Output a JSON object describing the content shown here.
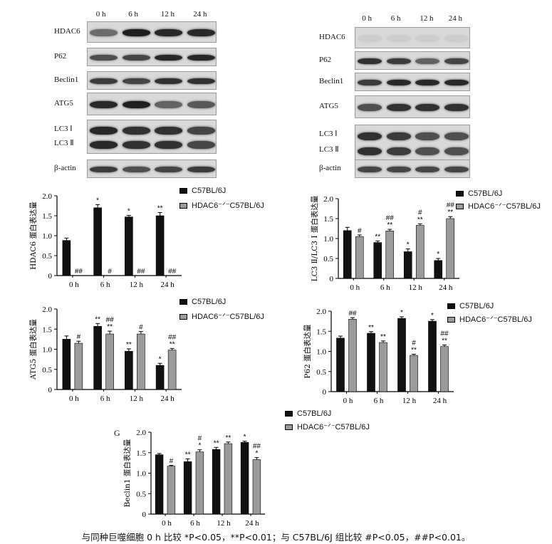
{
  "colors": {
    "wt": "#111111",
    "ko": "#9b9b9b",
    "axis": "#000000"
  },
  "blot_left": {
    "time_labels": [
      "0 h",
      "6 h",
      "12 h",
      "24 h"
    ],
    "rows": [
      {
        "label": "HDAC6",
        "intensity": [
          0.55,
          0.95,
          0.9,
          0.9
        ]
      },
      {
        "label": "P62",
        "intensity": [
          0.7,
          0.75,
          0.9,
          0.9
        ]
      },
      {
        "label": "Beclin1",
        "intensity": [
          0.8,
          0.75,
          0.85,
          0.85
        ]
      },
      {
        "label": "ATG5",
        "intensity": [
          0.9,
          0.95,
          0.6,
          0.65
        ]
      },
      {
        "label": "LC3 Ⅰ\nLC3 Ⅱ",
        "intensity": [
          0.9,
          0.85,
          0.85,
          0.75
        ]
      },
      {
        "label": "β-actin",
        "intensity": [
          0.8,
          0.7,
          0.75,
          0.8
        ]
      }
    ]
  },
  "blot_right": {
    "time_labels": [
      "0 h",
      "6 h",
      "12 h",
      "24 h"
    ],
    "rows": [
      {
        "label": "HDAC6",
        "intensity": [
          0.05,
          0.05,
          0.05,
          0.05
        ]
      },
      {
        "label": "P62",
        "intensity": [
          0.85,
          0.8,
          0.6,
          0.75
        ]
      },
      {
        "label": "Beclin1",
        "intensity": [
          0.8,
          0.9,
          0.9,
          0.9
        ]
      },
      {
        "label": "ATG5",
        "intensity": [
          0.7,
          0.85,
          0.85,
          0.85
        ]
      },
      {
        "label": "LC3 Ⅰ\nLC3 Ⅱ",
        "intensity": [
          0.85,
          0.8,
          0.7,
          0.7
        ]
      },
      {
        "label": "β-actin",
        "intensity": [
          0.75,
          0.75,
          0.75,
          0.75
        ]
      }
    ]
  },
  "legend_labels": [
    "C57BL/6J",
    "HDAC6⁻ᐟ⁻C57BL/6J"
  ],
  "panel_letter": "G",
  "caption": "与同种巨噬细胞 0 h 比较 *P<0.05，**P<0.01；与 C57BL/6J 组比较 #P<0.05，##P<0.01。",
  "chart_data": [
    {
      "type": "bar",
      "ylabel": "HDAC6 蛋白表达量",
      "categories": [
        "0 h",
        "6 h",
        "12 h",
        "24 h"
      ],
      "ylim": [
        0,
        2.0
      ],
      "yticks": [
        "0",
        "0.5",
        "1.0",
        "1.5",
        "2.0"
      ],
      "series": [
        {
          "name": "C57BL/6J",
          "values": [
            0.88,
            1.7,
            1.47,
            1.5
          ],
          "errors": [
            0.06,
            0.08,
            0.04,
            0.08
          ],
          "marks": [
            "",
            "*",
            "*",
            "**"
          ]
        },
        {
          "name": "HDAC6⁻ᐟ⁻C57BL/6J",
          "values": [
            0.0,
            0.0,
            0.0,
            0.0
          ],
          "errors": [
            0,
            0,
            0,
            0
          ],
          "marks": [
            "##",
            "#",
            "##",
            "##"
          ]
        }
      ]
    },
    {
      "type": "bar",
      "ylabel": "LC3 Ⅱ/LC3 Ⅰ 蛋白表达量",
      "categories": [
        "0 h",
        "6 h",
        "12 h",
        "24 h"
      ],
      "ylim": [
        0,
        2.0
      ],
      "yticks": [
        "0",
        "0.5",
        "1.0",
        "1.5",
        "2.0"
      ],
      "series": [
        {
          "name": "C57BL/6J",
          "values": [
            1.2,
            0.9,
            0.67,
            0.45
          ],
          "errors": [
            0.08,
            0.04,
            0.07,
            0.05
          ],
          "marks": [
            "",
            "**",
            "*",
            "*"
          ]
        },
        {
          "name": "HDAC6⁻ᐟ⁻C57BL/6J",
          "values": [
            1.05,
            1.19,
            1.33,
            1.5
          ],
          "errors": [
            0.04,
            0.04,
            0.04,
            0.05
          ],
          "marks": [
            "#",
            "##\n**",
            "#\n**",
            "##\n**"
          ]
        }
      ]
    },
    {
      "type": "bar",
      "ylabel": "ATG5 蛋白表达量",
      "categories": [
        "0 h",
        "6 h",
        "12 h",
        "24 h"
      ],
      "ylim": [
        0,
        2.0
      ],
      "yticks": [
        "0",
        "0.5",
        "1.0",
        "1.5",
        "2.0"
      ],
      "series": [
        {
          "name": "C57BL/6J",
          "values": [
            1.25,
            1.57,
            0.95,
            0.6
          ],
          "errors": [
            0.08,
            0.07,
            0.06,
            0.05
          ],
          "marks": [
            "",
            "**",
            "**",
            "*"
          ]
        },
        {
          "name": "HDAC6⁻ᐟ⁻C57BL/6J",
          "values": [
            1.15,
            1.38,
            1.38,
            0.98
          ],
          "errors": [
            0.05,
            0.07,
            0.06,
            0.04
          ],
          "marks": [
            "#",
            "##\n**",
            "#",
            "##\n**"
          ]
        }
      ]
    },
    {
      "type": "bar",
      "ylabel": "P62 蛋白表达量",
      "categories": [
        "0 h",
        "6 h",
        "12 h",
        "24 h"
      ],
      "ylim": [
        0,
        2.0
      ],
      "yticks": [
        "0",
        "0.5",
        "1.0",
        "1.5",
        "2.0"
      ],
      "series": [
        {
          "name": "C57BL/6J",
          "values": [
            1.33,
            1.45,
            1.82,
            1.75
          ],
          "errors": [
            0.05,
            0.04,
            0.04,
            0.04
          ],
          "marks": [
            "",
            "**",
            "*",
            "*"
          ]
        },
        {
          "name": "HDAC6⁻ᐟ⁻C57BL/6J",
          "values": [
            1.8,
            1.22,
            0.9,
            1.12
          ],
          "errors": [
            0.04,
            0.04,
            0.03,
            0.04
          ],
          "marks": [
            "##",
            "**",
            "#\n**",
            "##\n**"
          ]
        }
      ]
    },
    {
      "type": "bar",
      "ylabel": "Beclin1 蛋白表达量",
      "categories": [
        "0 h",
        "6 h",
        "12 h",
        "24 h"
      ],
      "ylim": [
        0,
        2.0
      ],
      "yticks": [
        "0",
        "0.5",
        "1.0",
        "1.5",
        "2.0"
      ],
      "series": [
        {
          "name": "C57BL/6J",
          "values": [
            1.45,
            1.28,
            1.58,
            1.75
          ],
          "errors": [
            0.03,
            0.07,
            0.05,
            0.03
          ],
          "marks": [
            "",
            "**",
            "**",
            "*"
          ]
        },
        {
          "name": "HDAC6⁻ᐟ⁻C57BL/6J",
          "values": [
            1.17,
            1.52,
            1.72,
            1.33
          ],
          "errors": [
            0.02,
            0.05,
            0.04,
            0.05
          ],
          "marks": [
            "#",
            "#\n*",
            "**",
            "##\n*"
          ]
        }
      ]
    }
  ]
}
